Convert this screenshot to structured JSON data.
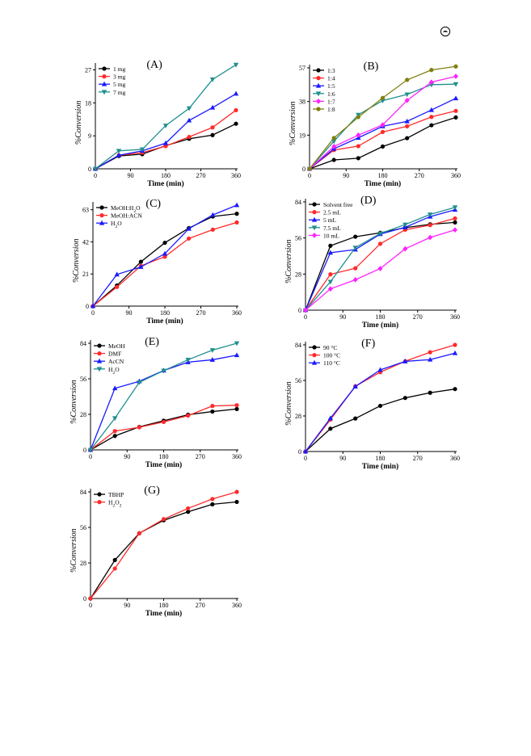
{
  "page": {
    "corner_icon": "open-access-icon"
  },
  "chart_data": [
    {
      "id": "A",
      "type": "line",
      "title": "(A)",
      "xlabel": "Time (min)",
      "ylabel": "%Conversion",
      "x": [
        0,
        60,
        120,
        180,
        240,
        300,
        360
      ],
      "xticks": [
        "0",
        "90",
        "180",
        "270",
        "360"
      ],
      "xtick_values": [
        0,
        90,
        180,
        270,
        360
      ],
      "yticks": [
        "0",
        "9",
        "18",
        "27"
      ],
      "ytick_values": [
        0,
        9,
        18,
        27
      ],
      "xlim": [
        0,
        360
      ],
      "ylim": [
        0,
        28
      ],
      "legend_position": "top-left",
      "series": [
        {
          "name": "1 mg",
          "color": "#000000",
          "marker": "circle",
          "values": [
            0,
            3.5,
            4,
            6.3,
            8.2,
            9.2,
            12.3
          ]
        },
        {
          "name": "3 mg",
          "color": "#ff2a2a",
          "marker": "circle",
          "values": [
            0,
            3.7,
            4.4,
            6.2,
            8.7,
            11.3,
            16
          ]
        },
        {
          "name": "5 mg",
          "color": "#1a1aff",
          "marker": "triangle",
          "values": [
            0,
            3.7,
            4.9,
            7,
            13.2,
            16.7,
            20.5
          ]
        },
        {
          "name": "7 mg",
          "color": "#1f8f8f",
          "marker": "triangle-down",
          "values": [
            0,
            4.9,
            5.3,
            11.8,
            16.5,
            24.4,
            28.4
          ]
        }
      ]
    },
    {
      "id": "B",
      "type": "line",
      "title": "(B)",
      "xlabel": "Time (min)",
      "ylabel": "%Conversion",
      "x": [
        0,
        60,
        120,
        180,
        240,
        300,
        360
      ],
      "xticks": [
        "0",
        "90",
        "180",
        "270",
        "360"
      ],
      "xtick_values": [
        0,
        90,
        180,
        270,
        360
      ],
      "yticks": [
        "0",
        "19",
        "38",
        "57"
      ],
      "ytick_values": [
        0,
        19,
        38,
        57
      ],
      "xlim": [
        0,
        360
      ],
      "ylim": [
        0,
        57
      ],
      "legend_position": "top-left",
      "series": [
        {
          "name": "1:3",
          "color": "#000000",
          "marker": "circle",
          "values": [
            0,
            5,
            6,
            12.6,
            17.3,
            24.6,
            29
          ]
        },
        {
          "name": "1:4",
          "color": "#ff2a2a",
          "marker": "circle",
          "values": [
            0,
            10.6,
            12.8,
            20.8,
            24,
            29.3,
            32.7
          ]
        },
        {
          "name": "1:5",
          "color": "#1a1aff",
          "marker": "triangle",
          "values": [
            0,
            11.3,
            17.5,
            24,
            26.8,
            33.2,
            39.8
          ]
        },
        {
          "name": "1:6",
          "color": "#1f8f8f",
          "marker": "triangle-down",
          "values": [
            0,
            15.6,
            30.5,
            38.5,
            42,
            47.5,
            47.8
          ]
        },
        {
          "name": "1:7",
          "color": "#ff22ff",
          "marker": "diamond",
          "values": [
            0,
            12.6,
            19,
            24.8,
            38.6,
            48.9,
            52.2
          ]
        },
        {
          "name": "1:8",
          "color": "#808010",
          "marker": "circle",
          "values": [
            0,
            17.4,
            29.2,
            40,
            50.2,
            55.8,
            57.8
          ]
        }
      ]
    },
    {
      "id": "C",
      "type": "line",
      "title": "(C)",
      "xlabel": "Time (min)",
      "ylabel": "%Conversion",
      "x": [
        0,
        60,
        120,
        180,
        240,
        300,
        360
      ],
      "xticks": [
        "0",
        "90",
        "180",
        "270",
        "360"
      ],
      "xtick_values": [
        0,
        90,
        180,
        270,
        360
      ],
      "yticks": [
        "0",
        "21",
        "42",
        "63"
      ],
      "ytick_values": [
        0,
        21,
        42,
        63
      ],
      "xlim": [
        0,
        360
      ],
      "ylim": [
        0,
        66
      ],
      "legend_position": "top-left",
      "series": [
        {
          "name": "MeOH:H2O",
          "color": "#000000",
          "marker": "circle",
          "values": [
            0,
            13.5,
            29,
            41.4,
            51,
            58.6,
            60.4
          ]
        },
        {
          "name": "MeOH:ACN",
          "color": "#ff2a2a",
          "marker": "circle",
          "values": [
            0,
            12.5,
            26.3,
            32.3,
            44.2,
            50,
            54.7
          ]
        },
        {
          "name": "H2O",
          "color": "#1a1aff",
          "marker": "triangle",
          "values": [
            0,
            20.7,
            25.6,
            34.3,
            50.6,
            59.6,
            66
          ]
        }
      ]
    },
    {
      "id": "D",
      "type": "line",
      "title": "(D)",
      "xlabel": "Time (min)",
      "ylabel": "%Conversion",
      "x": [
        0,
        60,
        120,
        180,
        240,
        300,
        360
      ],
      "xticks": [
        "0",
        "90",
        "180",
        "270",
        "360"
      ],
      "xtick_values": [
        0,
        90,
        180,
        270,
        360
      ],
      "yticks": [
        "0",
        "28",
        "56",
        "84"
      ],
      "ytick_values": [
        0,
        28,
        56,
        84
      ],
      "xlim": [
        0,
        360
      ],
      "ylim": [
        0,
        84
      ],
      "legend_position": "top-left",
      "series": [
        {
          "name": "Solvent free",
          "color": "#000000",
          "marker": "circle",
          "values": [
            0,
            50,
            57,
            60,
            64,
            66.6,
            68.1
          ]
        },
        {
          "name": "2.5 mL",
          "color": "#ff2a2a",
          "marker": "circle",
          "values": [
            0,
            27.8,
            32.5,
            51.5,
            62.4,
            66,
            71.2
          ]
        },
        {
          "name": "5 mL",
          "color": "#1a1aff",
          "marker": "triangle",
          "values": [
            0,
            44.6,
            47,
            59,
            64.3,
            72.6,
            77.9
          ]
        },
        {
          "name": "7.5 mL",
          "color": "#1f8f8f",
          "marker": "triangle-down",
          "values": [
            0,
            22,
            48.5,
            59.5,
            66.4,
            74.3,
            79.8
          ]
        },
        {
          "name": "10 mL",
          "color": "#ff22ff",
          "marker": "diamond",
          "values": [
            0,
            16.5,
            23.6,
            32.3,
            47.6,
            56.4,
            62.3
          ]
        }
      ]
    },
    {
      "id": "E",
      "type": "line",
      "title": "(E)",
      "xlabel": "Time (min)",
      "ylabel": "%Conversion",
      "x": [
        0,
        60,
        120,
        180,
        240,
        300,
        360
      ],
      "xticks": [
        "0",
        "90",
        "180",
        "270",
        "360"
      ],
      "xtick_values": [
        0,
        90,
        180,
        270,
        360
      ],
      "yticks": [
        "0",
        "28",
        "56",
        "84"
      ],
      "ytick_values": [
        0,
        28,
        56,
        84
      ],
      "xlim": [
        0,
        360
      ],
      "ylim": [
        0,
        84
      ],
      "legend_position": "top-left",
      "series": [
        {
          "name": "MeOH",
          "color": "#000000",
          "marker": "circle",
          "values": [
            0,
            11,
            18.1,
            23,
            27.7,
            30.2,
            32.2
          ]
        },
        {
          "name": "DMF",
          "color": "#ff2a2a",
          "marker": "circle",
          "values": [
            0,
            14.8,
            17.8,
            22,
            27,
            34.6,
            35.2
          ]
        },
        {
          "name": "AcCN",
          "color": "#1a1aff",
          "marker": "triangle",
          "values": [
            0,
            48.5,
            54,
            62.5,
            69.1,
            71,
            74.6
          ]
        },
        {
          "name": "H2O",
          "color": "#1f8f8f",
          "marker": "triangle-down",
          "values": [
            0,
            25,
            53.2,
            62.4,
            71,
            78.6,
            84
          ]
        }
      ]
    },
    {
      "id": "F",
      "type": "line",
      "title": "(F)",
      "xlabel": "Time (min)",
      "ylabel": "%Conversion",
      "x": [
        0,
        60,
        120,
        180,
        240,
        300,
        360
      ],
      "xticks": [
        "0",
        "90",
        "180",
        "270",
        "360"
      ],
      "xtick_values": [
        0,
        90,
        180,
        270,
        360
      ],
      "yticks": [
        "0",
        "28",
        "56",
        "84"
      ],
      "ytick_values": [
        0,
        28,
        56,
        84
      ],
      "xlim": [
        0,
        360
      ],
      "ylim": [
        0,
        84
      ],
      "legend_position": "top-left",
      "series": [
        {
          "name": "90 °C",
          "color": "#000000",
          "marker": "circle",
          "values": [
            0,
            18,
            26,
            36,
            42.2,
            46.3,
            49.2
          ]
        },
        {
          "name": "100 °C",
          "color": "#ff2a2a",
          "marker": "circle",
          "values": [
            0,
            25.1,
            51.4,
            62.5,
            71.1,
            78.2,
            84
          ]
        },
        {
          "name": "110 °C",
          "color": "#1a1aff",
          "marker": "triangle",
          "values": [
            0,
            26.2,
            51.2,
            64.3,
            71,
            72.4,
            77.5
          ]
        }
      ]
    },
    {
      "id": "G",
      "type": "line",
      "title": "(G)",
      "xlabel": "Time (min)",
      "ylabel": "%Conversion",
      "x": [
        0,
        60,
        120,
        180,
        240,
        300,
        360
      ],
      "xticks": [
        "0",
        "90",
        "180",
        "270",
        "360"
      ],
      "xtick_values": [
        0,
        90,
        180,
        270,
        360
      ],
      "yticks": [
        "0",
        "28",
        "56",
        "84"
      ],
      "ytick_values": [
        0,
        28,
        56,
        84
      ],
      "xlim": [
        0,
        360
      ],
      "ylim": [
        0,
        84
      ],
      "legend_position": "top-left",
      "series": [
        {
          "name": "TBHP",
          "color": "#000000",
          "marker": "circle",
          "values": [
            0,
            30.3,
            51.4,
            61.6,
            68.3,
            74.2,
            76.1
          ]
        },
        {
          "name": "H2O2",
          "color": "#ff2a2a",
          "marker": "circle",
          "values": [
            0,
            23.6,
            51.4,
            62.5,
            71,
            78.4,
            84
          ]
        }
      ]
    }
  ]
}
